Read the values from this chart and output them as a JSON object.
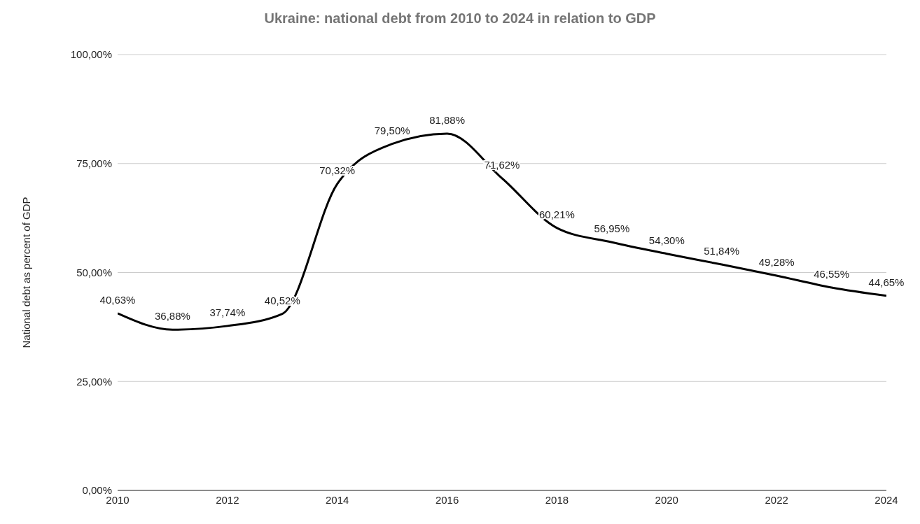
{
  "chart_data": {
    "type": "line",
    "title": "Ukraine: national debt from 2010 to 2024 in relation to GDP",
    "ylabel": "National debt as percent of GDP",
    "x": [
      2010,
      2011,
      2012,
      2013,
      2014,
      2015,
      2016,
      2017,
      2018,
      2019,
      2020,
      2021,
      2022,
      2023,
      2024
    ],
    "series": [
      {
        "color": "#000000",
        "values": [
          40.63,
          36.88,
          37.74,
          40.52,
          70.32,
          79.5,
          81.88,
          71.62,
          60.21,
          56.95,
          54.3,
          51.84,
          49.28,
          46.55,
          44.65
        ],
        "value_labels": [
          "40,63%",
          "36,88%",
          "37,74%",
          "40,52%",
          "70,32%",
          "79,50%",
          "81,88%",
          "71,62%",
          "60,21%",
          "56,95%",
          "54,30%",
          "51,84%",
          "49,28%",
          "46,55%",
          "44,65%"
        ]
      }
    ],
    "xlim": [
      2010,
      2024
    ],
    "xticks": [
      2010,
      2012,
      2014,
      2016,
      2018,
      2020,
      2022,
      2024
    ],
    "ylim": [
      0,
      100
    ],
    "yticks": [
      {
        "value": 0,
        "label": "0,00%"
      },
      {
        "value": 25,
        "label": "25,00%"
      },
      {
        "value": 50,
        "label": "50,00%"
      },
      {
        "value": 75,
        "label": "75,00%"
      },
      {
        "value": 100,
        "label": "100,00%"
      }
    ],
    "grid": "y",
    "legend": false,
    "marker": "none",
    "line_style": "solid"
  }
}
